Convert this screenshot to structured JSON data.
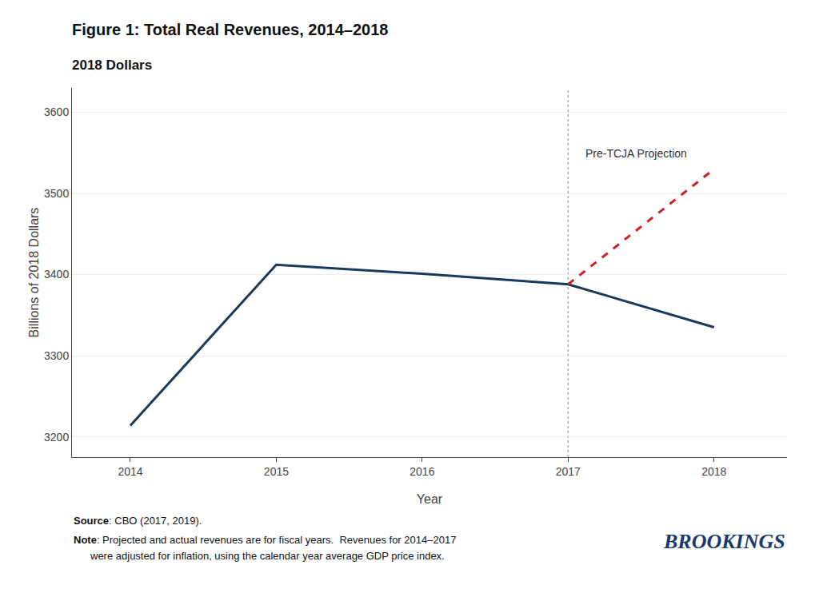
{
  "chart_data": {
    "type": "line",
    "title": "Figure 1: Total Real Revenues, 2014–2018",
    "subtitle": "2018 Dollars",
    "x_label": "Year",
    "y_label": "Billions of 2018 Dollars",
    "series": [
      {
        "x": [
          2014,
          2015,
          2016,
          2017,
          2018
        ],
        "values": [
          3214,
          3412,
          3401,
          3388,
          3335
        ],
        "color": "#1a3a5c",
        "line_style": "solid"
      },
      {
        "x": [
          2017,
          2018
        ],
        "values": [
          3388,
          3530
        ],
        "color": "#cc2222",
        "line_style": "dashed"
      }
    ],
    "reference_lines": [
      {
        "x": 2017,
        "color": "#aaaaaa",
        "line_style": "dotted"
      }
    ],
    "annotation": "Pre-TCJA Projection",
    "xlim": [
      2013.6,
      2018.5
    ],
    "xticks": [
      2014,
      2015,
      2016,
      2017,
      2018
    ],
    "ylim": [
      3175,
      3630
    ],
    "yticks": [
      3200,
      3300,
      3400,
      3500,
      3600
    ],
    "grid": "y",
    "source": "Source: CBO (2017, 2019).",
    "note": [
      "Note: Projected and actual revenues are for fiscal years.  Revenues for 2014–2017",
      "were adjusted for inflation, using the calendar year average GDP price index."
    ],
    "logo": "BROOKINGS",
    "logo_color": "#1a3a6e"
  }
}
